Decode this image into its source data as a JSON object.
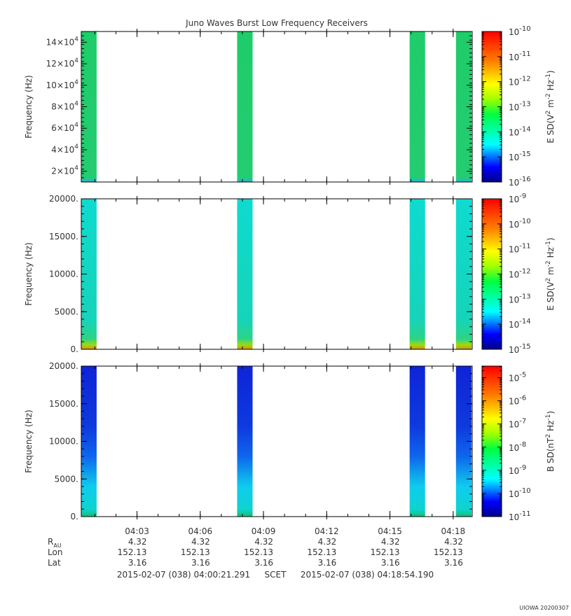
{
  "title": "Juno Waves Burst Low Frequency Receivers",
  "colors": {
    "panel_top_bursts": "#22e060",
    "panel_top_floor": "#18c0e0",
    "panel_mid_bursts": "#10e8c8",
    "panel_mid_floor": "#e8a000",
    "panel_bot_bursts": "#1030e0",
    "panel_bot_floor": "#18d870"
  },
  "chart_data": [
    {
      "type": "heatmap",
      "name": "panel-top",
      "ylabel": "Frequency (Hz)",
      "ylim": [
        10000,
        150000
      ],
      "y_ticks": [
        {
          "mant": "2×10",
          "exp": "4",
          "value": 20000
        },
        {
          "mant": "4×10",
          "exp": "4",
          "value": 40000
        },
        {
          "mant": "6×10",
          "exp": "4",
          "value": 60000
        },
        {
          "mant": "8×10",
          "exp": "4",
          "value": 80000
        },
        {
          "mant": "10×10",
          "exp": "4",
          "value": 100000
        },
        {
          "mant": "12×10",
          "exp": "4",
          "value": 120000
        },
        {
          "mant": "14×10",
          "exp": "4",
          "value": 140000
        }
      ],
      "colorbar": {
        "label_parts": [
          "E SD(V",
          "2",
          " m",
          "-2",
          " Hz",
          "-1",
          ")"
        ],
        "log_range": [
          -16,
          -10
        ],
        "ticks": [
          {
            "exp": "-10",
            "value": -10
          },
          {
            "exp": "-11",
            "value": -11
          },
          {
            "exp": "-12",
            "value": -12
          },
          {
            "exp": "-13",
            "value": -13
          },
          {
            "exp": "-14",
            "value": -14
          },
          {
            "exp": "-15",
            "value": -15
          },
          {
            "exp": "-16",
            "value": -16
          }
        ]
      }
    },
    {
      "type": "heatmap",
      "name": "panel-middle",
      "ylabel": "Frequency (Hz)",
      "ylim": [
        0,
        20000
      ],
      "y_ticks": [
        {
          "label": "0.",
          "value": 0
        },
        {
          "label": "5000.",
          "value": 5000
        },
        {
          "label": "10000.",
          "value": 10000
        },
        {
          "label": "15000.",
          "value": 15000
        },
        {
          "label": "20000.",
          "value": 20000
        }
      ],
      "colorbar": {
        "label_parts": [
          "E SD(V",
          "2",
          " m",
          "-2",
          " Hz",
          "-1",
          ")"
        ],
        "log_range": [
          -15,
          -9
        ],
        "ticks": [
          {
            "exp": "-9",
            "value": -9
          },
          {
            "exp": "-10",
            "value": -10
          },
          {
            "exp": "-11",
            "value": -11
          },
          {
            "exp": "-12",
            "value": -12
          },
          {
            "exp": "-13",
            "value": -13
          },
          {
            "exp": "-14",
            "value": -14
          },
          {
            "exp": "-15",
            "value": -15
          }
        ]
      }
    },
    {
      "type": "heatmap",
      "name": "panel-bottom",
      "ylabel": "Frequency (Hz)",
      "ylim": [
        0,
        20000
      ],
      "y_ticks": [
        {
          "label": "0.",
          "value": 0
        },
        {
          "label": "5000.",
          "value": 5000
        },
        {
          "label": "10000.",
          "value": 10000
        },
        {
          "label": "15000.",
          "value": 15000
        },
        {
          "label": "20000.",
          "value": 20000
        }
      ],
      "colorbar": {
        "label_parts": [
          "B SD(nT",
          "2",
          " Hz",
          "-1",
          ")"
        ],
        "log_range": [
          -11,
          -4.5
        ],
        "ticks": [
          {
            "exp": "-5",
            "value": -5
          },
          {
            "exp": "-6",
            "value": -6
          },
          {
            "exp": "-7",
            "value": -7
          },
          {
            "exp": "-8",
            "value": -8
          },
          {
            "exp": "-9",
            "value": -9
          },
          {
            "exp": "-10",
            "value": -10
          },
          {
            "exp": "-11",
            "value": -11
          }
        ]
      }
    }
  ],
  "time_axis": {
    "start": "2015-02-07 04:00:21.291",
    "end": "2015-02-07 04:18:54.190",
    "tick_labels": [
      "04:03",
      "04:06",
      "04:09",
      "04:12",
      "04:15",
      "04:18"
    ],
    "bursts": [
      {
        "start": "04:00:21",
        "end": "04:01:05"
      },
      {
        "start": "04:07:45",
        "end": "04:08:29"
      },
      {
        "start": "04:15:56",
        "end": "04:16:40"
      },
      {
        "start": "04:18:08",
        "end": "04:18:52"
      }
    ]
  },
  "ephemeris": {
    "rows": [
      {
        "label": "R",
        "sub": "AU",
        "values": [
          "4.32",
          "4.32",
          "4.32",
          "4.32",
          "4.32",
          "4.32"
        ]
      },
      {
        "label": "Lon",
        "values": [
          "152.13",
          "152.13",
          "152.13",
          "152.13",
          "152.13",
          "152.13"
        ]
      },
      {
        "label": "Lat",
        "values": [
          "3.16",
          "3.16",
          "3.16",
          "3.16",
          "3.16",
          "3.16"
        ]
      }
    ]
  },
  "footer": {
    "start_text": "2015-02-07 (038) 04:00:21.291",
    "scet": "SCET",
    "end_text": "2015-02-07 (038) 04:18:54.190"
  },
  "credit": "UIOWA 20200307"
}
